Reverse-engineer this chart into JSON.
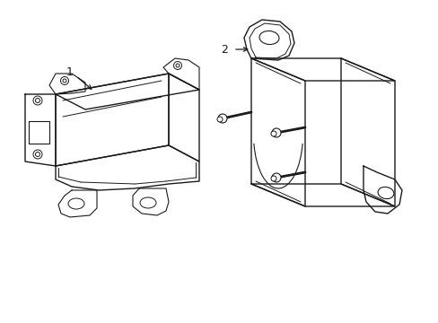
{
  "background_color": "#ffffff",
  "line_color": "#1a1a1a",
  "line_width": 1.0,
  "fig_width": 4.89,
  "fig_height": 3.6,
  "dpi": 100,
  "label1": "1",
  "label2": "2"
}
